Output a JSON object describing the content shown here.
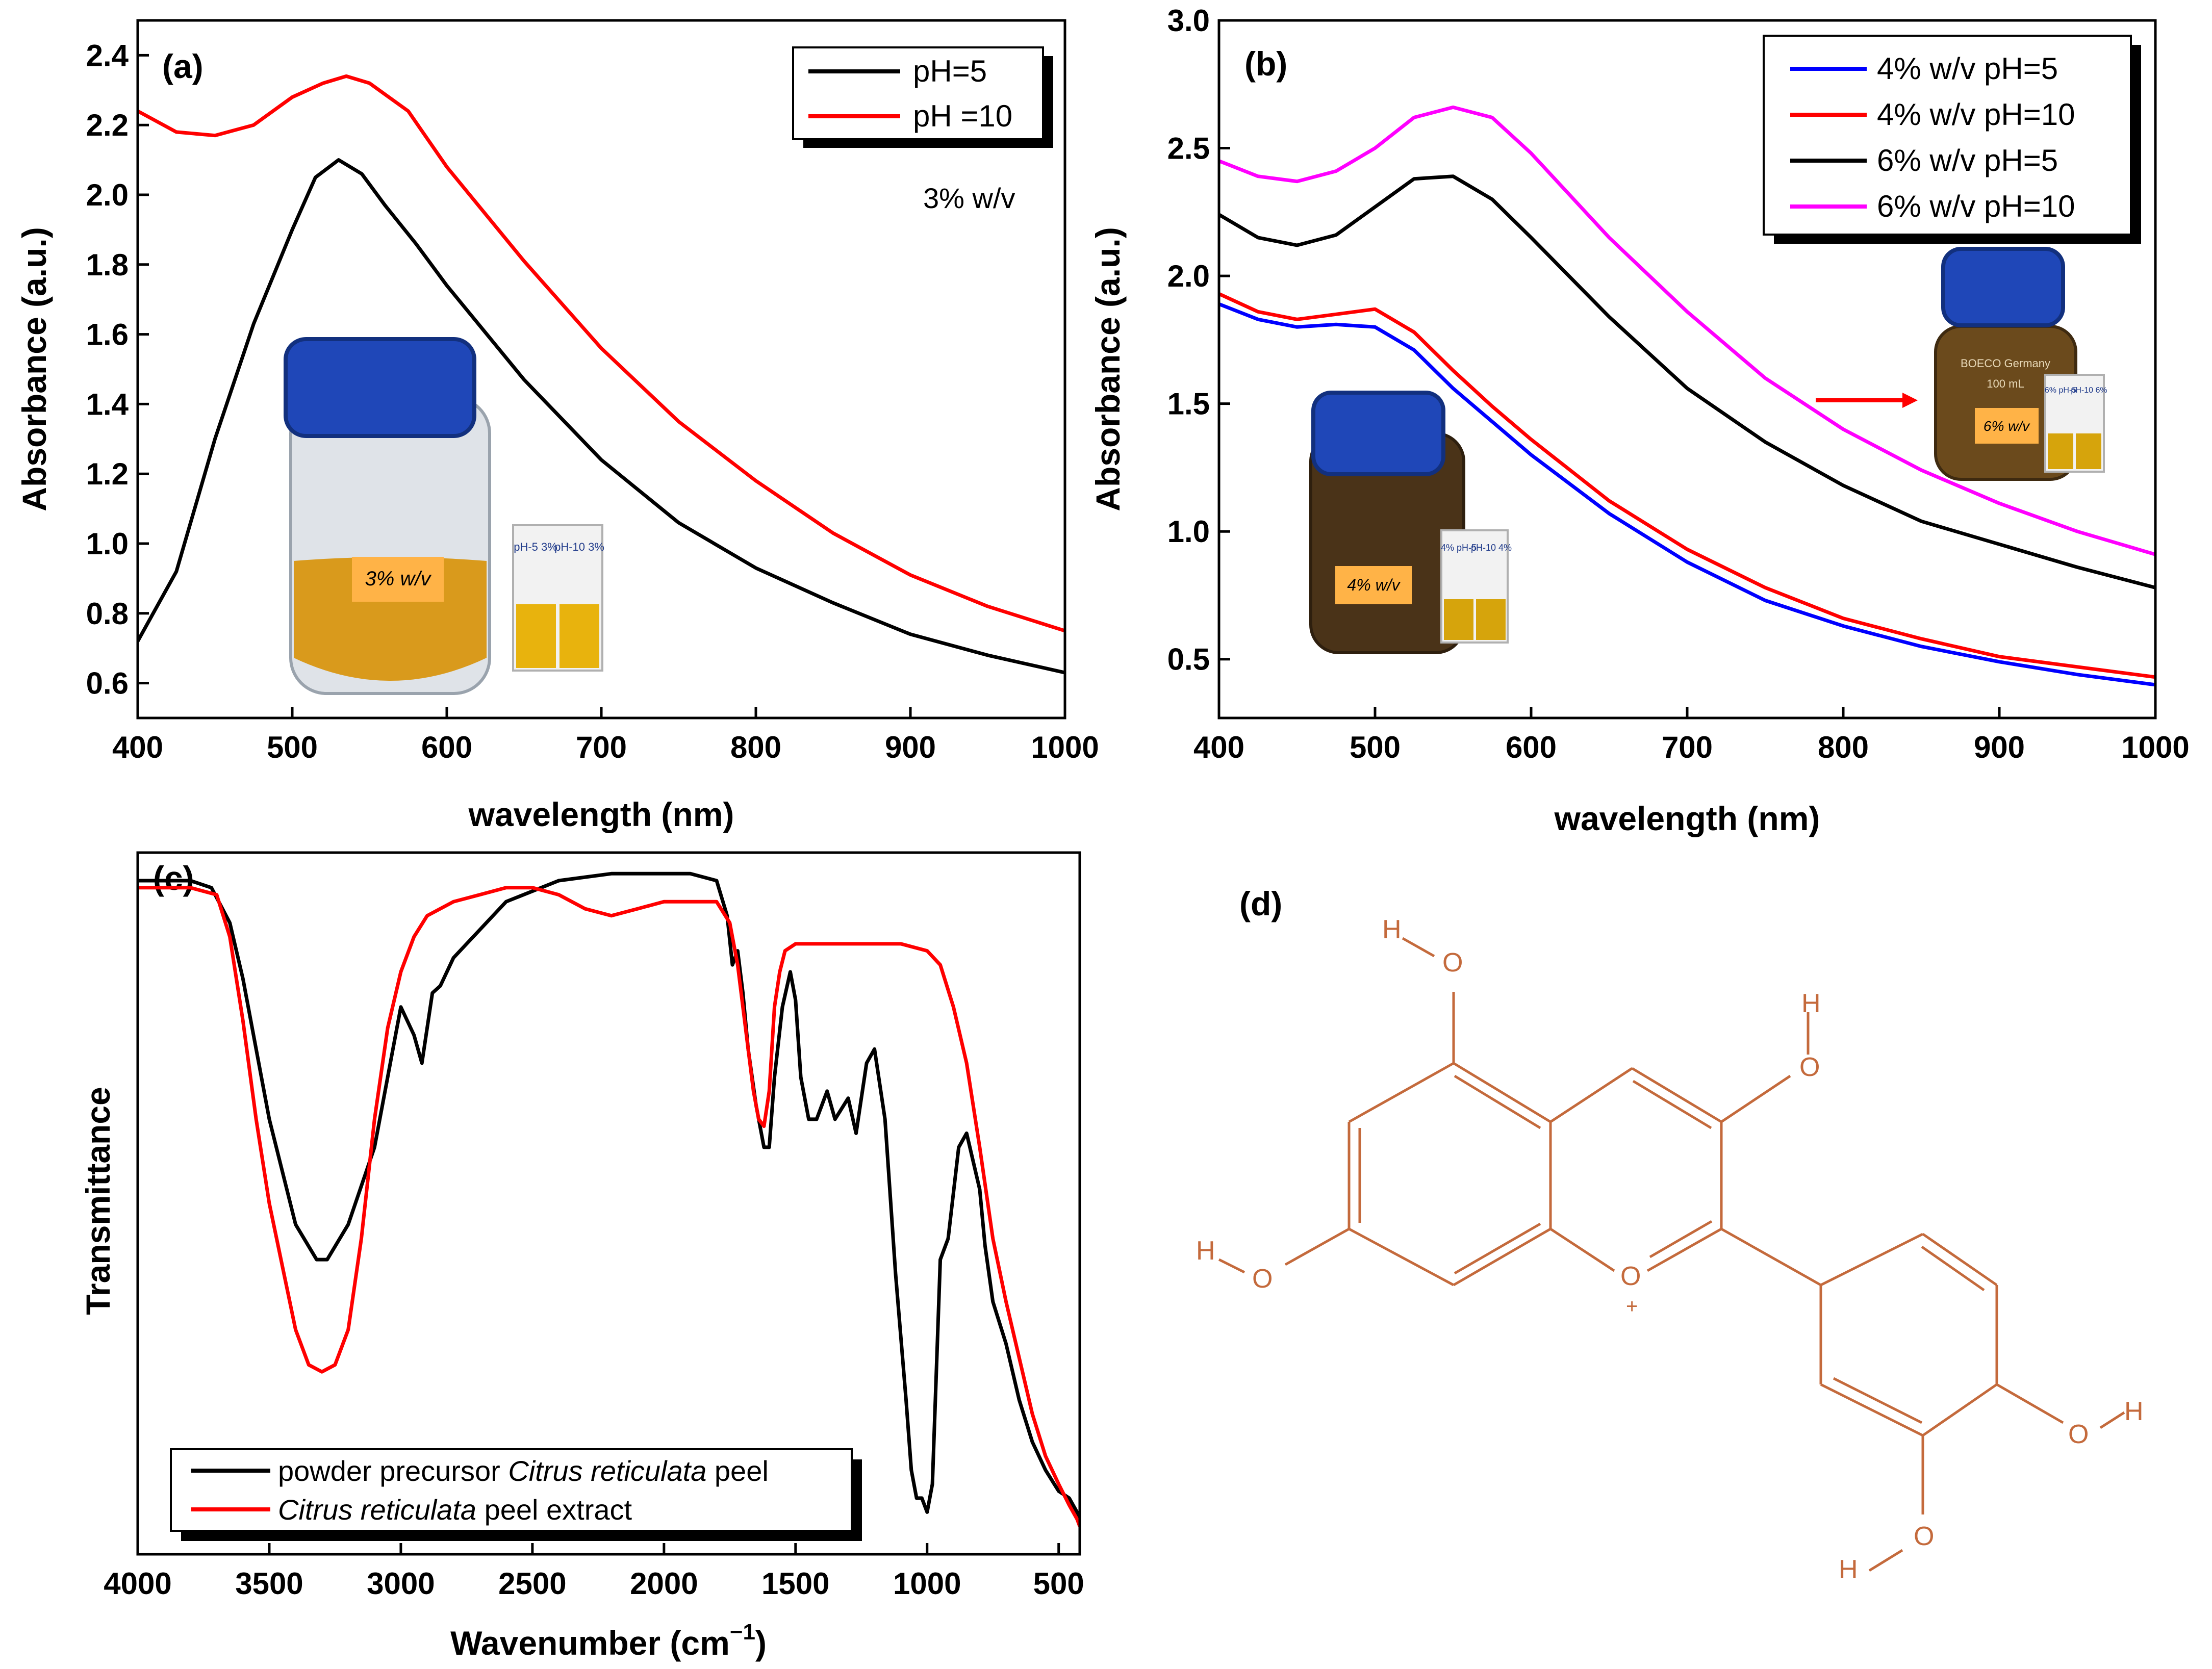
{
  "colors": {
    "black": "#000000",
    "red": "#ff0000",
    "blue": "#0000ff",
    "magenta": "#ff00ff",
    "molecule": "#c46a3c",
    "jar_cap": "#1f47b8",
    "liquid_a": "#d99a1c",
    "liquid_dark": "#4a3318",
    "liquid_c": "#6b4a1c"
  },
  "chart_data": [
    {
      "panel": "(a)",
      "type": "line",
      "xlabel": "wavelength (nm)",
      "ylabel": "Absorbance (a.u.)",
      "xlim": [
        400,
        1000
      ],
      "ylim": [
        0.5,
        2.5
      ],
      "xticks": [
        400,
        500,
        600,
        700,
        800,
        900,
        1000
      ],
      "yticks": [
        0.6,
        0.8,
        1.0,
        1.2,
        1.4,
        1.6,
        1.8,
        2.0,
        2.2,
        2.4
      ],
      "annotation": "3% w/v",
      "legend_position": "top-right",
      "series": [
        {
          "name": "pH=5",
          "color": "#000000",
          "x": [
            400,
            425,
            450,
            475,
            500,
            515,
            530,
            545,
            560,
            580,
            600,
            650,
            700,
            750,
            800,
            850,
            900,
            950,
            1000
          ],
          "y": [
            0.72,
            0.92,
            1.3,
            1.63,
            1.9,
            2.05,
            2.1,
            2.06,
            1.97,
            1.86,
            1.74,
            1.47,
            1.24,
            1.06,
            0.93,
            0.83,
            0.74,
            0.68,
            0.63
          ]
        },
        {
          "name": "pH =10",
          "color": "#ff0000",
          "x": [
            400,
            425,
            450,
            475,
            500,
            520,
            535,
            550,
            575,
            600,
            650,
            700,
            750,
            800,
            850,
            900,
            950,
            1000
          ],
          "y": [
            2.24,
            2.18,
            2.17,
            2.2,
            2.28,
            2.32,
            2.34,
            2.32,
            2.24,
            2.08,
            1.81,
            1.56,
            1.35,
            1.18,
            1.03,
            0.91,
            0.82,
            0.75
          ]
        }
      ],
      "inset": {
        "jar_label": "3% w/v",
        "cuvette_labels": [
          "pH-5 3%",
          "pH-10 3%"
        ]
      }
    },
    {
      "panel": "(b)",
      "type": "line",
      "xlabel": "wavelength (nm)",
      "ylabel": "Absorbance (a.u.)",
      "xlim": [
        400,
        1000
      ],
      "ylim": [
        0.27,
        3.0
      ],
      "xticks": [
        400,
        500,
        600,
        700,
        800,
        900,
        1000
      ],
      "yticks": [
        0.5,
        1.0,
        1.5,
        2.0,
        2.5,
        3.0
      ],
      "legend_position": "top-right",
      "series": [
        {
          "name": "4% w/v pH=5",
          "color": "#0000ff",
          "x": [
            400,
            425,
            450,
            475,
            500,
            525,
            550,
            575,
            600,
            650,
            700,
            750,
            800,
            850,
            900,
            950,
            1000
          ],
          "y": [
            1.89,
            1.83,
            1.8,
            1.81,
            1.8,
            1.71,
            1.56,
            1.43,
            1.3,
            1.07,
            0.88,
            0.73,
            0.63,
            0.55,
            0.49,
            0.44,
            0.4
          ]
        },
        {
          "name": "4% w/v pH=10",
          "color": "#ff0000",
          "x": [
            400,
            425,
            450,
            475,
            500,
            525,
            550,
            575,
            600,
            650,
            700,
            750,
            800,
            850,
            900,
            950,
            1000
          ],
          "y": [
            1.93,
            1.86,
            1.83,
            1.85,
            1.87,
            1.78,
            1.63,
            1.49,
            1.36,
            1.12,
            0.93,
            0.78,
            0.66,
            0.58,
            0.51,
            0.47,
            0.43
          ]
        },
        {
          "name": "6% w/v pH=5",
          "color": "#000000",
          "x": [
            400,
            425,
            450,
            475,
            500,
            525,
            550,
            575,
            600,
            650,
            700,
            750,
            800,
            850,
            900,
            950,
            1000
          ],
          "y": [
            2.24,
            2.15,
            2.12,
            2.16,
            2.27,
            2.38,
            2.39,
            2.3,
            2.15,
            1.84,
            1.56,
            1.35,
            1.18,
            1.04,
            0.95,
            0.86,
            0.78
          ]
        },
        {
          "name": "6% w/v pH=10",
          "color": "#ff00ff",
          "x": [
            400,
            425,
            450,
            475,
            500,
            525,
            550,
            575,
            600,
            650,
            700,
            750,
            800,
            850,
            900,
            950,
            1000
          ],
          "y": [
            2.45,
            2.39,
            2.37,
            2.41,
            2.5,
            2.62,
            2.66,
            2.62,
            2.48,
            2.15,
            1.86,
            1.6,
            1.4,
            1.24,
            1.11,
            1.0,
            0.91
          ]
        }
      ],
      "inset": {
        "jar_left_label": "4% w/v",
        "cuvette_left_labels": [
          "4% pH-5",
          "pH-10 4%"
        ],
        "jar_right_brand": "BOECO Germany",
        "jar_right_volume": "100 mL",
        "jar_right_label": "6% w/v",
        "cuvette_right_labels": [
          "6% pH-5",
          "pH-10 6%"
        ]
      }
    },
    {
      "panel": "(c)",
      "type": "line",
      "xlabel": "Wavenumber (cm",
      "xlabel_sup": "−1",
      "xlabel_tail": ")",
      "ylabel": "Transmittance",
      "xlim": [
        4000,
        420
      ],
      "ylim": [
        0,
        100
      ],
      "xticks": [
        4000,
        3500,
        3000,
        2500,
        2000,
        1500,
        1000,
        500
      ],
      "legend_position": "bottom-left",
      "legend_entries": [
        {
          "prefix": "powder precursor ",
          "italic": "Citrus reticulata",
          "suffix": " peel",
          "color": "#000000"
        },
        {
          "prefix": "",
          "italic": "Citrus reticulata",
          "suffix": " peel extract",
          "color": "#ff0000"
        }
      ],
      "series": [
        {
          "name": "powder precursor Citrus reticulata peel",
          "color": "#000000",
          "x": [
            4000,
            3800,
            3720,
            3650,
            3600,
            3500,
            3400,
            3320,
            3280,
            3200,
            3100,
            3000,
            2950,
            2920,
            2880,
            2850,
            2800,
            2700,
            2600,
            2400,
            2200,
            2100,
            2000,
            1900,
            1800,
            1760,
            1740,
            1720,
            1700,
            1680,
            1650,
            1620,
            1600,
            1580,
            1550,
            1520,
            1500,
            1480,
            1450,
            1420,
            1400,
            1380,
            1350,
            1300,
            1270,
            1250,
            1230,
            1200,
            1160,
            1120,
            1080,
            1060,
            1040,
            1020,
            1000,
            980,
            950,
            920,
            880,
            850,
            800,
            780,
            750,
            700,
            650,
            600,
            550,
            500,
            460,
            430,
            420
          ],
          "y": [
            96,
            96,
            95,
            90,
            82,
            62,
            47,
            42,
            42,
            47,
            58,
            78,
            74,
            70,
            80,
            81,
            85,
            89,
            93,
            96,
            97,
            97,
            97,
            97,
            96,
            91,
            84,
            86,
            80,
            72,
            64,
            58,
            58,
            68,
            78,
            83,
            79,
            68,
            62,
            62,
            64,
            66,
            62,
            65,
            60,
            65,
            70,
            72,
            62,
            40,
            22,
            12,
            8,
            8,
            6,
            10,
            42,
            45,
            58,
            60,
            52,
            44,
            36,
            30,
            22,
            16,
            12,
            9,
            8,
            6,
            5
          ]
        },
        {
          "name": "Citrus reticulata peel extract",
          "color": "#ff0000",
          "x": [
            4000,
            3800,
            3700,
            3650,
            3600,
            3550,
            3500,
            3400,
            3350,
            3300,
            3250,
            3200,
            3150,
            3100,
            3050,
            3000,
            2950,
            2900,
            2800,
            2700,
            2600,
            2500,
            2400,
            2300,
            2200,
            2100,
            2000,
            1900,
            1800,
            1750,
            1720,
            1700,
            1680,
            1660,
            1640,
            1620,
            1600,
            1580,
            1560,
            1540,
            1500,
            1400,
            1300,
            1200,
            1100,
            1000,
            950,
            900,
            850,
            800,
            750,
            700,
            650,
            600,
            550,
            500,
            460,
            430,
            420
          ],
          "y": [
            95,
            95,
            94,
            88,
            76,
            62,
            50,
            32,
            27,
            26,
            27,
            32,
            45,
            62,
            75,
            83,
            88,
            91,
            93,
            94,
            95,
            95,
            94,
            92,
            91,
            92,
            93,
            93,
            93,
            90,
            84,
            78,
            72,
            66,
            62,
            61,
            66,
            78,
            83,
            86,
            87,
            87,
            87,
            87,
            87,
            86,
            84,
            78,
            70,
            58,
            45,
            36,
            28,
            20,
            14,
            10,
            7,
            5,
            4
          ]
        }
      ]
    }
  ],
  "panel_d": {
    "label": "(d)",
    "atom_labels": {
      "h": "H",
      "o": "O",
      "plus": "+"
    }
  }
}
